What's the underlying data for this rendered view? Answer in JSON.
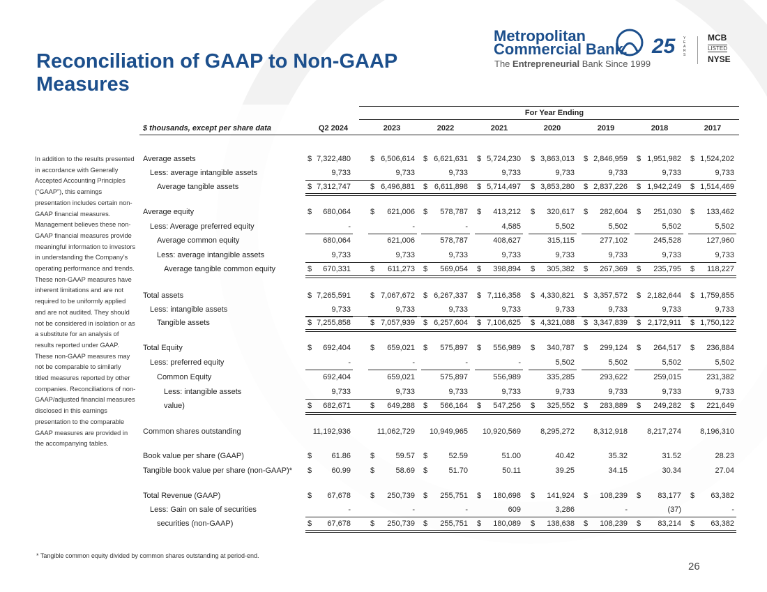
{
  "header": {
    "title": "Reconciliation of GAAP to Non-GAAP Measures",
    "logo": {
      "name_line1": "Metropolitan",
      "name_line2": "Commercial Bank.",
      "tagline": [
        "The",
        "Entrepreneurial",
        "Bank Since 1999"
      ],
      "anniversary": "25",
      "anniversary_unit": "YEARS",
      "ticker": "MCB",
      "listed": "LISTED",
      "exchange": "NYSE"
    }
  },
  "sidebar": "In addition to the results presented in accordance with Generally Accepted Accounting Principles (“GAAP”), this earnings presentation includes certain non-GAAP financial measures. Management believes these non-GAAP financial measures provide meaningful information to investors in understanding the Company’s operating performance and trends. These non-GAAP measures have inherent limitations and are not required to be uniformly applied and are not audited. They should not be considered in isolation or as a substitute for an analysis of results reported under GAAP. These non-GAAP measures may not be comparable to similarly titled measures reported by other companies. Reconciliations of non-GAAP/adjusted financial measures disclosed in this earnings presentation to the comparable GAAP measures are provided in the accompanying tables.",
  "table": {
    "group_header": "For Year Ending",
    "units": "$ thousands, except per share data",
    "columns": [
      "Q2 2024",
      "2023",
      "2022",
      "2021",
      "2020",
      "2019",
      "2018",
      "2017"
    ],
    "rows": [
      {
        "label": "Average assets",
        "symbols": [
          "$",
          "$",
          "$",
          "$",
          "$",
          "$",
          "$",
          "$"
        ],
        "values": [
          "7,322,480",
          "6,506,614",
          "6,621,631",
          "5,724,230",
          "3,863,013",
          "2,846,959",
          "1,951,982",
          "1,524,202"
        ]
      },
      {
        "label": "Less: average intangible assets",
        "symbols": [
          null,
          null,
          null,
          null,
          null,
          null,
          null,
          null
        ],
        "values": [
          "9,733",
          "9,733",
          "9,733",
          "9,733",
          "9,733",
          "9,733",
          "9,733",
          "9,733"
        ]
      },
      {
        "label": "Average tangible assets",
        "symbols": [
          "$",
          "$",
          "$",
          "$",
          "$",
          "$",
          "$",
          "$"
        ],
        "values": [
          "7,312,747",
          "6,496,881",
          "6,611,898",
          "5,714,497",
          "3,853,280",
          "2,837,226",
          "1,942,249",
          "1,514,469"
        ]
      },
      {
        "label": "Average equity",
        "symbols": [
          "$",
          "$",
          "$",
          "$",
          "$",
          "$",
          "$",
          "$"
        ],
        "values": [
          "680,064",
          "621,006",
          "578,787",
          "413,212",
          "320,617",
          "282,604",
          "251,030",
          "133,462"
        ]
      },
      {
        "label": "Less: Average preferred equity",
        "symbols": [
          null,
          null,
          null,
          null,
          null,
          null,
          null,
          null
        ],
        "values": [
          "-",
          "-",
          "-",
          "4,585",
          "5,502",
          "5,502",
          "5,502",
          "5,502"
        ]
      },
      {
        "label": "Average common equity",
        "symbols": [
          null,
          null,
          null,
          null,
          null,
          null,
          null,
          null
        ],
        "values": [
          "680,064",
          "621,006",
          "578,787",
          "408,627",
          "315,115",
          "277,102",
          "245,528",
          "127,960"
        ]
      },
      {
        "label": "Less: average intangible assets",
        "symbols": [
          null,
          null,
          null,
          null,
          null,
          null,
          null,
          null
        ],
        "values": [
          "9,733",
          "9,733",
          "9,733",
          "9,733",
          "9,733",
          "9,733",
          "9,733",
          "9,733"
        ]
      },
      {
        "label": "Average tangible common equity",
        "symbols": [
          "$",
          "$",
          "$",
          "$",
          "$",
          "$",
          "$",
          "$"
        ],
        "values": [
          "670,331",
          "611,273",
          "569,054",
          "398,894",
          "305,382",
          "267,369",
          "235,795",
          "118,227"
        ]
      },
      {
        "label": "Total assets",
        "symbols": [
          "$",
          "$",
          "$",
          "$",
          "$",
          "$",
          "$",
          "$"
        ],
        "values": [
          "7,265,591",
          "7,067,672",
          "6,267,337",
          "7,116,358",
          "4,330,821",
          "3,357,572",
          "2,182,644",
          "1,759,855"
        ]
      },
      {
        "label": "Less: intangible assets",
        "symbols": [
          null,
          null,
          null,
          null,
          null,
          null,
          null,
          null
        ],
        "values": [
          "9,733",
          "9,733",
          "9,733",
          "9,733",
          "9,733",
          "9,733",
          "9,733",
          "9,733"
        ]
      },
      {
        "label": "Tangible assets",
        "symbols": [
          "$",
          "$",
          "$",
          "$",
          "$",
          "$",
          "$",
          "$"
        ],
        "values": [
          "7,255,858",
          "7,057,939",
          "6,257,604",
          "7,106,625",
          "4,321,088",
          "3,347,839",
          "2,172,911",
          "1,750,122"
        ]
      },
      {
        "label": "Total Equity",
        "symbols": [
          "$",
          "$",
          "$",
          "$",
          "$",
          "$",
          "$",
          "$"
        ],
        "values": [
          "692,404",
          "659,021",
          "575,897",
          "556,989",
          "340,787",
          "299,124",
          "264,517",
          "236,884"
        ]
      },
      {
        "label": "Less: preferred equity",
        "symbols": [
          null,
          null,
          null,
          null,
          null,
          null,
          null,
          null
        ],
        "values": [
          "-",
          "-",
          "-",
          "-",
          "5,502",
          "5,502",
          "5,502",
          "5,502"
        ]
      },
      {
        "label": "Common Equity",
        "symbols": [
          null,
          null,
          null,
          null,
          null,
          null,
          null,
          null
        ],
        "values": [
          "692,404",
          "659,021",
          "575,897",
          "556,989",
          "335,285",
          "293,622",
          "259,015",
          "231,382"
        ]
      },
      {
        "label": "Less: intangible assets",
        "symbols": [
          null,
          null,
          null,
          null,
          null,
          null,
          null,
          null
        ],
        "values": [
          "9,733",
          "9,733",
          "9,733",
          "9,733",
          "9,733",
          "9,733",
          "9,733",
          "9,733"
        ]
      },
      {
        "label": "value)",
        "symbols": [
          "$",
          "$",
          "$",
          "$",
          "$",
          "$",
          "$",
          "$"
        ],
        "values": [
          "682,671",
          "649,288",
          "566,164",
          "547,256",
          "325,552",
          "283,889",
          "249,282",
          "221,649"
        ]
      },
      {
        "label": "Common shares outstanding",
        "symbols": [
          null,
          null,
          null,
          null,
          null,
          null,
          null,
          null
        ],
        "values": [
          "11,192,936",
          "11,062,729",
          "10,949,965",
          "10,920,569",
          "8,295,272",
          "8,312,918",
          "8,217,274",
          "8,196,310"
        ]
      },
      {
        "label": "Book value per share (GAAP)",
        "symbols": [
          "$",
          "$",
          "$",
          null,
          null,
          null,
          null,
          null
        ],
        "values": [
          "61.86",
          "59.57",
          "52.59",
          "51.00",
          "40.42",
          "35.32",
          "31.52",
          "28.23"
        ]
      },
      {
        "label": "Tangible book value per share (non-GAAP)*",
        "symbols": [
          "$",
          "$",
          "$",
          null,
          null,
          null,
          null,
          null
        ],
        "values": [
          "60.99",
          "58.69",
          "51.70",
          "50.11",
          "39.25",
          "34.15",
          "30.34",
          "27.04"
        ]
      },
      {
        "label": "Total Revenue (GAAP)",
        "symbols": [
          "$",
          "$",
          "$",
          "$",
          "$",
          "$",
          "$",
          "$"
        ],
        "values": [
          "67,678",
          "250,739",
          "255,751",
          "180,698",
          "141,924",
          "108,239",
          "83,177",
          "63,382"
        ]
      },
      {
        "label": "Less: Gain on sale of securities",
        "symbols": [
          null,
          null,
          null,
          null,
          null,
          null,
          null,
          null
        ],
        "values": [
          "-",
          "-",
          "-",
          "609",
          "3,286",
          "-",
          "(37)",
          "-"
        ]
      },
      {
        "label": "securities (non-GAAP)",
        "symbols": [
          "$",
          "$",
          "$",
          "$",
          "$",
          "$",
          "$",
          "$"
        ],
        "values": [
          "67,678",
          "250,739",
          "255,751",
          "180,089",
          "138,638",
          "108,239",
          "83,214",
          "63,382"
        ]
      }
    ]
  },
  "footnote": "* Tangible common equity divided by common shares outstanding at period-end.",
  "page_number": "26"
}
